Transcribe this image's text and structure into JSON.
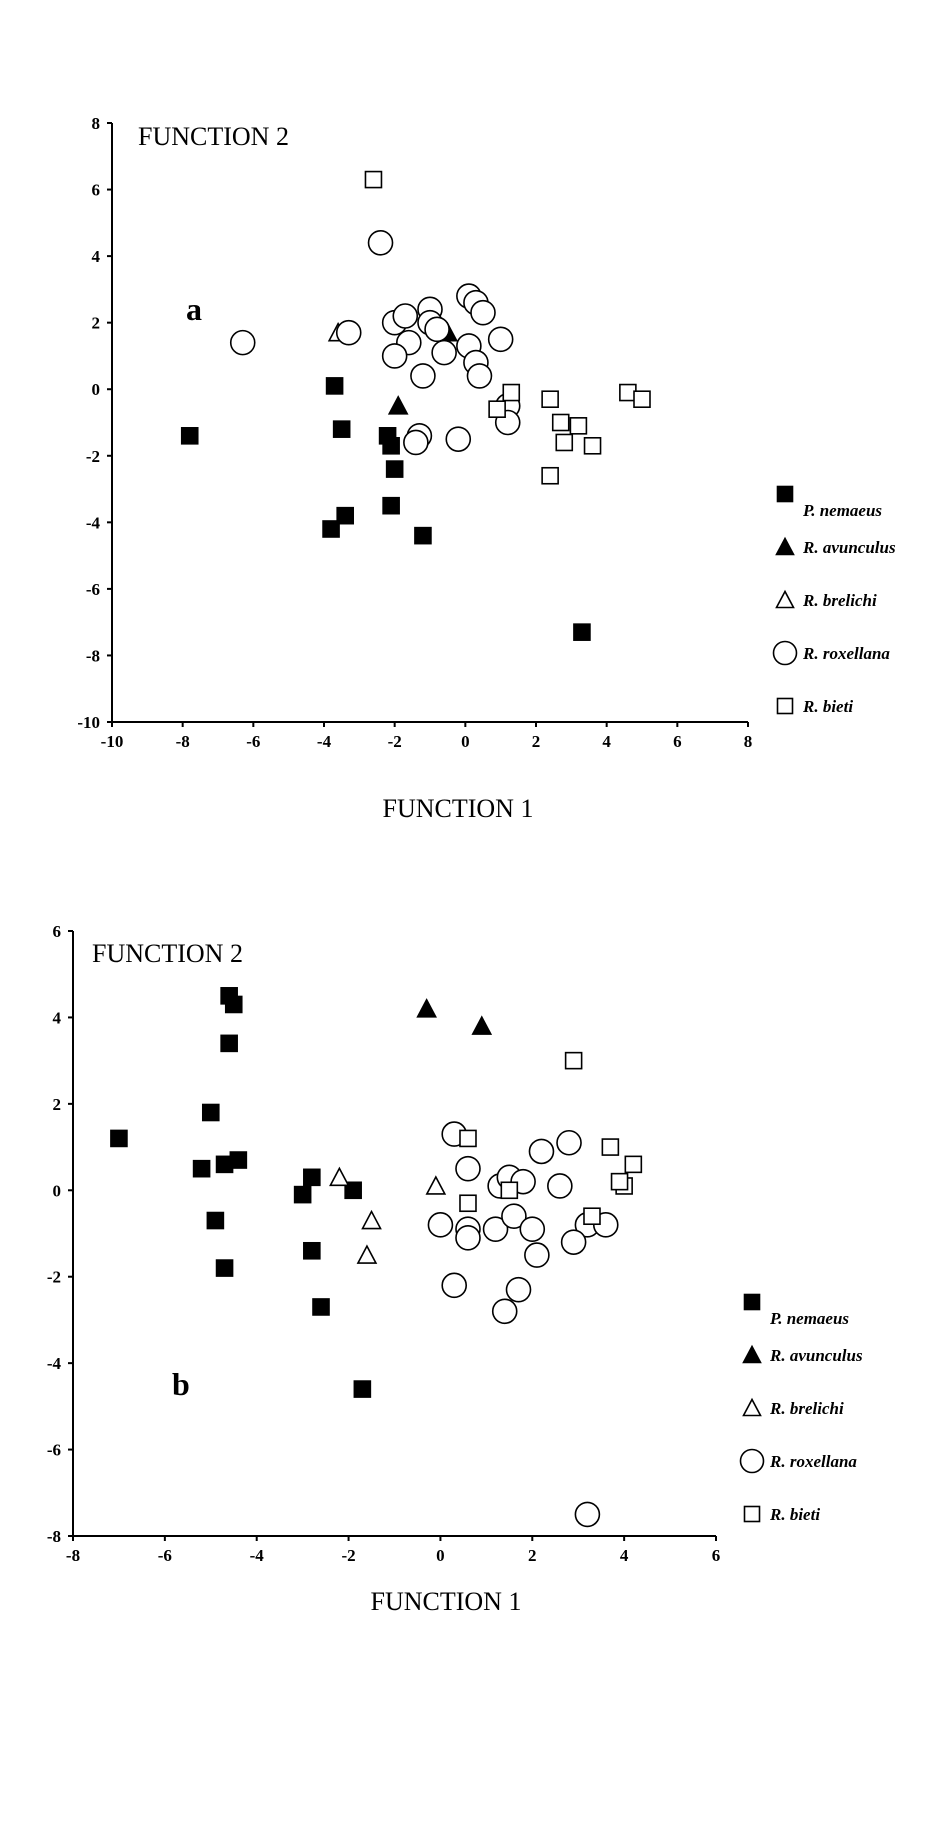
{
  "chart_data": [
    {
      "type": "scatter",
      "panel_label": "a",
      "xlabel": "FUNCTION 1",
      "ylabel": "FUNCTION 2",
      "xlim": [
        -10,
        8
      ],
      "ylim": [
        -10,
        8
      ],
      "xticks": [
        -10,
        -8,
        -6,
        -4,
        -2,
        0,
        2,
        4,
        6,
        8
      ],
      "yticks": [
        -10,
        -8,
        -6,
        -4,
        -2,
        0,
        2,
        4,
        6,
        8
      ],
      "legend_position": "right",
      "series": [
        {
          "name": "P. nemaeus",
          "marker": "filled-square",
          "points": [
            [
              -7.8,
              -1.4
            ],
            [
              -3.7,
              0.1
            ],
            [
              -3.5,
              -1.2
            ],
            [
              -3.8,
              -4.2
            ],
            [
              -3.4,
              -3.8
            ],
            [
              -2.2,
              -1.4
            ],
            [
              -2.1,
              -1.7
            ],
            [
              -2.0,
              -2.4
            ],
            [
              -2.1,
              -3.5
            ],
            [
              -1.2,
              -4.4
            ],
            [
              3.3,
              -7.3
            ]
          ]
        },
        {
          "name": "R. avunculus",
          "marker": "filled-triangle",
          "points": [
            [
              -1.9,
              -0.5
            ],
            [
              -0.5,
              1.7
            ]
          ]
        },
        {
          "name": "R. brelichi",
          "marker": "open-triangle",
          "points": [
            [
              -3.6,
              1.7
            ]
          ]
        },
        {
          "name": "R. roxellana",
          "marker": "open-circle",
          "points": [
            [
              -6.3,
              1.4
            ],
            [
              -3.3,
              1.7
            ],
            [
              -2.4,
              4.4
            ],
            [
              -2.0,
              2.0
            ],
            [
              -1.7,
              2.2
            ],
            [
              -1.0,
              2.4
            ],
            [
              -1.0,
              2.0
            ],
            [
              -0.8,
              1.8
            ],
            [
              -0.6,
              1.1
            ],
            [
              -1.6,
              1.4
            ],
            [
              -2.0,
              1.0
            ],
            [
              -1.2,
              0.4
            ],
            [
              -1.3,
              -1.4
            ],
            [
              -1.4,
              -1.6
            ],
            [
              -0.2,
              -1.5
            ],
            [
              0.1,
              2.8
            ],
            [
              0.3,
              2.6
            ],
            [
              0.5,
              2.3
            ],
            [
              0.1,
              1.3
            ],
            [
              0.3,
              0.8
            ],
            [
              0.4,
              0.4
            ],
            [
              1.0,
              1.5
            ],
            [
              1.2,
              -0.5
            ],
            [
              1.2,
              -1.0
            ]
          ]
        },
        {
          "name": "R. bieti",
          "marker": "open-square",
          "points": [
            [
              -2.6,
              6.3
            ],
            [
              1.3,
              -0.1
            ],
            [
              0.9,
              -0.6
            ],
            [
              2.4,
              -0.3
            ],
            [
              2.7,
              -1.0
            ],
            [
              3.2,
              -1.1
            ],
            [
              2.8,
              -1.6
            ],
            [
              3.6,
              -1.7
            ],
            [
              2.4,
              -2.6
            ],
            [
              4.6,
              -0.1
            ],
            [
              5.0,
              -0.3
            ]
          ]
        }
      ]
    },
    {
      "type": "scatter",
      "panel_label": "b",
      "xlabel": "FUNCTION 1",
      "ylabel": "FUNCTION 2",
      "xlim": [
        -8,
        6
      ],
      "ylim": [
        -8,
        6
      ],
      "xticks": [
        -8,
        -6,
        -4,
        -2,
        0,
        2,
        4,
        6
      ],
      "yticks": [
        -8,
        -6,
        -4,
        -2,
        0,
        2,
        4,
        6
      ],
      "legend_position": "right",
      "series": [
        {
          "name": "P. nemaeus",
          "marker": "filled-square",
          "points": [
            [
              -7.0,
              1.2
            ],
            [
              -5.2,
              0.5
            ],
            [
              -5.0,
              1.8
            ],
            [
              -4.7,
              0.6
            ],
            [
              -4.4,
              0.7
            ],
            [
              -4.6,
              4.5
            ],
            [
              -4.5,
              4.3
            ],
            [
              -4.6,
              3.4
            ],
            [
              -4.9,
              -0.7
            ],
            [
              -4.7,
              -1.8
            ],
            [
              -3.0,
              -0.1
            ],
            [
              -2.8,
              0.3
            ],
            [
              -1.9,
              0.0
            ],
            [
              -2.8,
              -1.4
            ],
            [
              -2.6,
              -2.7
            ],
            [
              -1.7,
              -4.6
            ]
          ]
        },
        {
          "name": "R. avunculus",
          "marker": "filled-triangle",
          "points": [
            [
              -0.3,
              4.2
            ],
            [
              0.9,
              3.8
            ]
          ]
        },
        {
          "name": "R. brelichi",
          "marker": "open-triangle",
          "points": [
            [
              -2.2,
              0.3
            ],
            [
              -1.5,
              -0.7
            ],
            [
              -1.6,
              -1.5
            ],
            [
              -0.1,
              0.1
            ]
          ]
        },
        {
          "name": "R. roxellana",
          "marker": "open-circle",
          "points": [
            [
              0.3,
              1.3
            ],
            [
              0.6,
              0.5
            ],
            [
              0.6,
              -0.9
            ],
            [
              0.6,
              -1.1
            ],
            [
              0.0,
              -0.8
            ],
            [
              1.2,
              -0.9
            ],
            [
              1.3,
              0.1
            ],
            [
              1.5,
              0.3
            ],
            [
              1.8,
              0.2
            ],
            [
              1.6,
              -0.6
            ],
            [
              2.0,
              -0.9
            ],
            [
              2.1,
              -1.5
            ],
            [
              1.7,
              -2.3
            ],
            [
              1.4,
              -2.8
            ],
            [
              0.3,
              -2.2
            ],
            [
              2.2,
              0.9
            ],
            [
              2.8,
              1.1
            ],
            [
              2.6,
              0.1
            ],
            [
              3.2,
              -0.8
            ],
            [
              3.6,
              -0.8
            ],
            [
              2.9,
              -1.2
            ],
            [
              3.2,
              -7.5
            ]
          ]
        },
        {
          "name": "R. bieti",
          "marker": "open-square",
          "points": [
            [
              0.6,
              1.2
            ],
            [
              0.6,
              -0.3
            ],
            [
              1.5,
              0.0
            ],
            [
              2.9,
              3.0
            ],
            [
              3.7,
              1.0
            ],
            [
              4.2,
              0.6
            ],
            [
              4.0,
              0.1
            ],
            [
              3.9,
              0.2
            ],
            [
              3.3,
              -0.6
            ]
          ]
        }
      ]
    }
  ]
}
